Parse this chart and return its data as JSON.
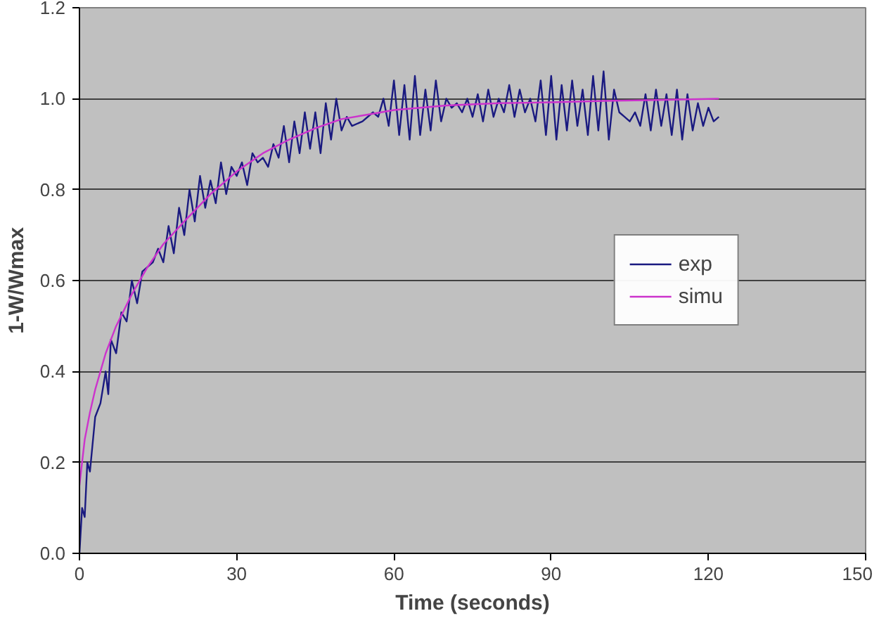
{
  "chart_data": {
    "type": "line",
    "xlabel": "Time (seconds)",
    "ylabel": "1-W/Wmax",
    "xlim": [
      0,
      150
    ],
    "xticks": [
      0,
      30,
      60,
      90,
      120,
      150
    ],
    "ylim": [
      0,
      1.2
    ],
    "yticks": [
      {
        "value": 0,
        "label": "0.0"
      },
      0.2,
      0.4,
      0.6,
      0.8,
      {
        "value": 1,
        "label": "1.0"
      },
      1.2
    ],
    "grid": "y",
    "legend": "right",
    "marker": "none",
    "line_style": "solid",
    "series": [
      {
        "name": "exp",
        "color": "#1a1a80",
        "x": [
          0,
          0.5,
          1,
          1.5,
          2,
          3,
          4,
          5,
          5.5,
          6,
          7,
          8,
          9,
          10,
          11,
          12,
          14,
          15,
          16,
          17,
          18,
          19,
          20,
          21,
          22,
          23,
          24,
          25,
          26,
          27,
          28,
          29,
          30,
          31,
          32,
          33,
          34,
          35,
          36,
          37,
          38,
          39,
          40,
          41,
          42,
          43,
          44,
          45,
          46,
          47,
          48,
          49,
          50,
          51,
          52,
          54,
          56,
          57,
          58,
          59,
          60,
          61,
          62,
          63,
          64,
          65,
          66,
          67,
          68,
          69,
          70,
          71,
          72,
          73,
          74,
          75,
          76,
          77,
          78,
          79,
          80,
          81,
          82,
          83,
          84,
          85,
          86,
          87,
          88,
          89,
          90,
          91,
          92,
          93,
          94,
          95,
          96,
          97,
          98,
          99,
          100,
          101,
          102,
          103,
          104,
          105,
          106,
          107,
          108,
          109,
          110,
          111,
          112,
          113,
          114,
          115,
          116,
          117,
          118,
          119,
          120,
          121,
          122
        ],
        "values": [
          0.0,
          0.1,
          0.08,
          0.2,
          0.18,
          0.3,
          0.33,
          0.4,
          0.35,
          0.47,
          0.44,
          0.53,
          0.51,
          0.6,
          0.55,
          0.62,
          0.64,
          0.67,
          0.64,
          0.72,
          0.66,
          0.76,
          0.7,
          0.8,
          0.73,
          0.83,
          0.76,
          0.82,
          0.77,
          0.86,
          0.79,
          0.85,
          0.83,
          0.86,
          0.81,
          0.88,
          0.86,
          0.87,
          0.85,
          0.9,
          0.87,
          0.94,
          0.86,
          0.95,
          0.88,
          0.97,
          0.89,
          0.97,
          0.88,
          0.99,
          0.91,
          1.0,
          0.93,
          0.96,
          0.94,
          0.95,
          0.97,
          0.96,
          1.0,
          0.94,
          1.04,
          0.92,
          1.03,
          0.91,
          1.05,
          0.92,
          1.02,
          0.93,
          1.04,
          0.95,
          1.0,
          0.98,
          0.99,
          0.97,
          1.0,
          0.96,
          1.01,
          0.95,
          1.02,
          0.96,
          1.0,
          0.97,
          1.03,
          0.96,
          1.02,
          0.97,
          1.0,
          0.95,
          1.04,
          0.92,
          1.05,
          0.91,
          1.03,
          0.93,
          1.04,
          0.94,
          1.02,
          0.92,
          1.05,
          0.93,
          1.06,
          0.91,
          1.02,
          0.97,
          0.96,
          0.95,
          0.97,
          0.94,
          1.01,
          0.93,
          1.02,
          0.94,
          1.01,
          0.92,
          1.02,
          0.91,
          1.01,
          0.93,
          0.99,
          0.94,
          0.98,
          0.95,
          0.96
        ]
      },
      {
        "name": "simu",
        "color": "#cc33cc",
        "x": [
          0,
          1,
          2,
          3,
          5,
          7,
          10,
          13,
          16,
          20,
          25,
          30,
          35,
          40,
          45,
          50,
          55,
          60,
          70,
          80,
          90,
          100,
          110,
          122
        ],
        "values": [
          0.15,
          0.25,
          0.31,
          0.36,
          0.44,
          0.5,
          0.57,
          0.63,
          0.68,
          0.73,
          0.79,
          0.84,
          0.88,
          0.91,
          0.935,
          0.955,
          0.965,
          0.975,
          0.985,
          0.99,
          0.992,
          0.995,
          0.997,
          1.0
        ]
      }
    ]
  }
}
